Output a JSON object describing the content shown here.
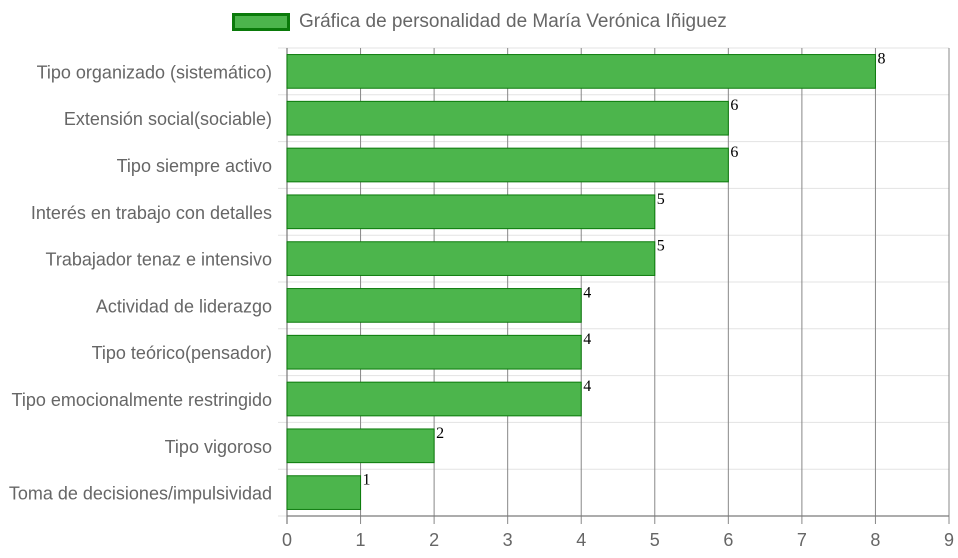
{
  "chart_data": {
    "type": "bar",
    "orientation": "horizontal",
    "legend": {
      "position": "top",
      "label": "Gráfica de personalidad de María Verónica Iñiguez"
    },
    "categories": [
      "Tipo organizado (sistemático)",
      "Extensión social(sociable)",
      "Tipo siempre activo",
      "Interés en trabajo con detalles",
      "Trabajador tenaz e intensivo",
      "Actividad de liderazgo",
      "Tipo teórico(pensador)",
      "Tipo emocionalmente restringido",
      "Tipo vigoroso",
      "Toma de decisiones/impulsividad"
    ],
    "series": [
      {
        "name": "Gráfica de personalidad de María Verónica Iñiguez",
        "values": [
          8,
          6,
          6,
          5,
          5,
          4,
          4,
          4,
          2,
          1
        ]
      }
    ],
    "data_labels": [
      "8",
      "6",
      "6",
      "5",
      "5",
      "4",
      "4",
      "4",
      "2",
      "1"
    ],
    "xlim": [
      0,
      9
    ],
    "x_ticks": [
      "0",
      "1",
      "2",
      "3",
      "4",
      "5",
      "6",
      "7",
      "8",
      "9"
    ],
    "grid": true,
    "colors": {
      "bar_fill": "#4cb54c",
      "bar_border": "#0a7a0a",
      "grid_vertical": "#888888",
      "grid_horizontal": "#e3e3e3",
      "tick_text": "#666666",
      "label_text": "#000000"
    }
  }
}
